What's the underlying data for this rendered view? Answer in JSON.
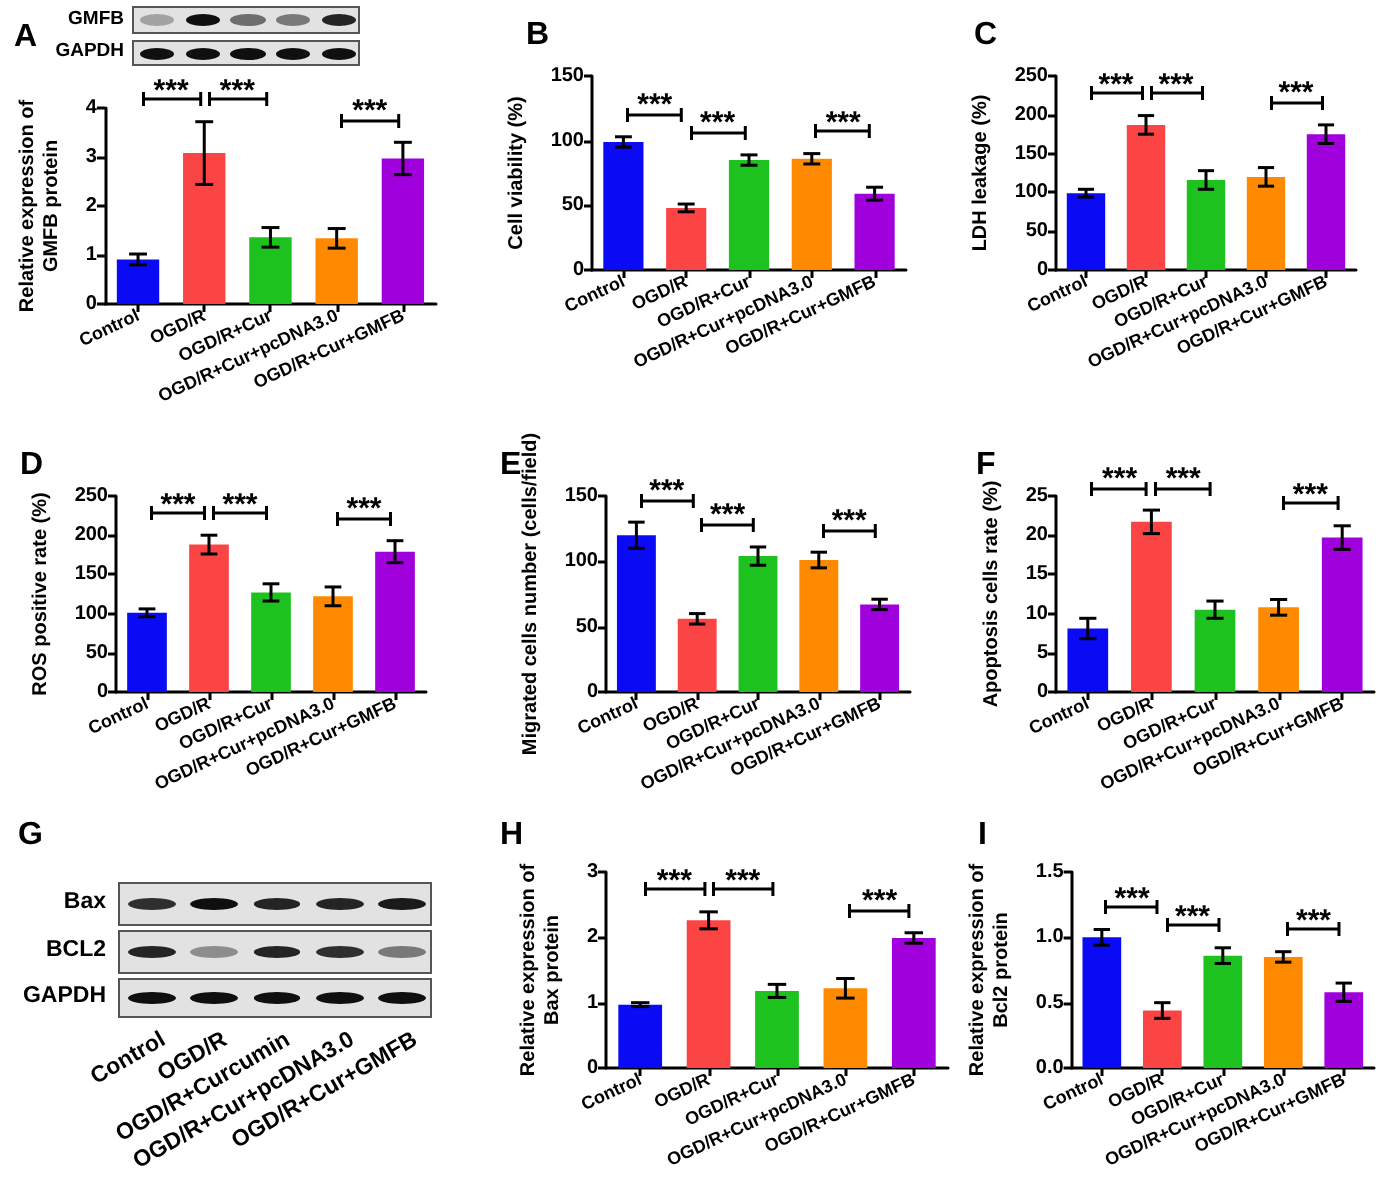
{
  "chart_data": [
    {
      "type": "bar",
      "title": "A",
      "categories": [
        "Control",
        "OGD/R",
        "OGD/R+Cur",
        "OGD/R+Cur+pcDNA3.0",
        "OGD/R+Cur+GMFB"
      ],
      "values": [
        0.91,
        3.08,
        1.36,
        1.34,
        2.97
      ],
      "errors": [
        0.11,
        0.64,
        0.2,
        0.2,
        0.33
      ],
      "colors": [
        "#0a0af5",
        "#fb4444",
        "#1ec21e",
        "#ff8a00",
        "#a000dc"
      ],
      "ylabel": "Relative expression of GMFB protein",
      "ylim": [
        0,
        4
      ],
      "yticks": [
        0,
        1,
        2,
        3,
        4
      ],
      "annotations": [
        "***",
        "***",
        "***",
        "GMFB",
        "GAPDH"
      ]
    },
    {
      "type": "bar",
      "title": "B",
      "categories": [
        "Control",
        "OGD/R",
        "OGD/R+Cur",
        "OGD/R+Cur+pcDNA3.0",
        "OGD/R+Cur+GMFB"
      ],
      "values": [
        99,
        48,
        85,
        86,
        59
      ],
      "errors": [
        4,
        3,
        4,
        4,
        5
      ],
      "colors": [
        "#0a0af5",
        "#fb4444",
        "#1ec21e",
        "#ff8a00",
        "#a000dc"
      ],
      "ylabel": "Cell viability (%)",
      "ylim": [
        0,
        150
      ],
      "yticks": [
        0,
        50,
        100,
        150
      ],
      "annotations": [
        "***",
        "***",
        "***"
      ]
    },
    {
      "type": "bar",
      "title": "C",
      "categories": [
        "Control",
        "OGD/R",
        "OGD/R+Cur",
        "OGD/R+Cur+pcDNA3.0",
        "OGD/R+Cur+GMFB"
      ],
      "values": [
        99,
        187,
        116,
        120,
        175
      ],
      "errors": [
        5,
        12,
        12,
        12,
        12
      ],
      "colors": [
        "#0a0af5",
        "#fb4444",
        "#1ec21e",
        "#ff8a00",
        "#a000dc"
      ],
      "ylabel": "LDH leakage (%)",
      "ylim": [
        0,
        250
      ],
      "yticks": [
        0,
        50,
        100,
        150,
        200,
        250
      ],
      "annotations": [
        "***",
        "***",
        "***"
      ]
    },
    {
      "type": "bar",
      "title": "D",
      "categories": [
        "Control",
        "OGD/R",
        "OGD/R+Cur",
        "OGD/R+Cur+pcDNA3.0",
        "OGD/R+Cur+GMFB"
      ],
      "values": [
        101,
        188,
        127,
        122,
        179
      ],
      "errors": [
        5,
        12,
        11,
        12,
        14
      ],
      "colors": [
        "#0a0af5",
        "#fb4444",
        "#1ec21e",
        "#ff8a00",
        "#a000dc"
      ],
      "ylabel": "ROS positive rate (%)",
      "ylim": [
        0,
        250
      ],
      "yticks": [
        0,
        50,
        100,
        150,
        200,
        250
      ],
      "annotations": [
        "***",
        "***",
        "***"
      ]
    },
    {
      "type": "bar",
      "title": "E",
      "categories": [
        "Control",
        "OGD/R",
        "OGD/R+Cur",
        "OGD/R+Cur+pcDNA3.0",
        "OGD/R+Cur+GMFB"
      ],
      "values": [
        120,
        56,
        104,
        101,
        67
      ],
      "errors": [
        10,
        4,
        7,
        6,
        4
      ],
      "colors": [
        "#0a0af5",
        "#fb4444",
        "#1ec21e",
        "#ff8a00",
        "#a000dc"
      ],
      "ylabel": "Migrated cells number (cells/field)",
      "ylim": [
        0,
        150
      ],
      "yticks": [
        0,
        50,
        100,
        150
      ],
      "annotations": [
        "***",
        "***",
        "***"
      ]
    },
    {
      "type": "bar",
      "title": "F",
      "categories": [
        "Control",
        "OGD/R",
        "OGD/R+Cur",
        "OGD/R+Cur+pcDNA3.0",
        "OGD/R+Cur+GMFB"
      ],
      "values": [
        8.1,
        21.7,
        10.5,
        10.8,
        19.7
      ],
      "errors": [
        1.3,
        1.5,
        1.1,
        1.0,
        1.5
      ],
      "colors": [
        "#0a0af5",
        "#fb4444",
        "#1ec21e",
        "#ff8a00",
        "#a000dc"
      ],
      "ylabel": "Apoptosis cells rate (%)",
      "ylim": [
        0,
        25
      ],
      "yticks": [
        0,
        5,
        10,
        15,
        20,
        25
      ],
      "annotations": [
        "***",
        "***",
        "***"
      ]
    },
    {
      "type": "other",
      "title": "G",
      "categories": [
        "Control",
        "OGD/R",
        "OGD/R+Curcumin",
        "OGD/R+Cur+pcDNA3.0",
        "OGD/R+Cur+GMFB"
      ],
      "annotations": [
        "Bax",
        "BCL2",
        "GAPDH"
      ]
    },
    {
      "type": "bar",
      "title": "H",
      "categories": [
        "Control",
        "OGD/R",
        "OGD/R+Cur",
        "OGD/R+Cur+pcDNA3.0",
        "OGD/R+Cur+GMFB"
      ],
      "values": [
        0.97,
        2.26,
        1.18,
        1.22,
        1.99
      ],
      "errors": [
        0.03,
        0.13,
        0.1,
        0.15,
        0.08
      ],
      "colors": [
        "#0a0af5",
        "#fb4444",
        "#1ec21e",
        "#ff8a00",
        "#a000dc"
      ],
      "ylabel": "Relative expression of Bax protein",
      "ylim": [
        0,
        3
      ],
      "yticks": [
        0,
        1,
        2,
        3
      ],
      "annotations": [
        "***",
        "***",
        "***"
      ]
    },
    {
      "type": "bar",
      "title": "I",
      "categories": [
        "Control",
        "OGD/R",
        "OGD/R+Cur",
        "OGD/R+Cur+pcDNA3.0",
        "OGD/R+Cur+GMFB"
      ],
      "values": [
        1.0,
        0.44,
        0.86,
        0.85,
        0.58
      ],
      "errors": [
        0.06,
        0.06,
        0.06,
        0.04,
        0.07
      ],
      "colors": [
        "#0a0af5",
        "#fb4444",
        "#1ec21e",
        "#ff8a00",
        "#a000dc"
      ],
      "ylabel": "Relative expression of Bcl2 protein",
      "ylim": [
        0,
        1.5
      ],
      "yticks": [
        {
          "value": 0,
          "label": "0.0"
        },
        {
          "value": 0.5,
          "label": "0.5"
        },
        {
          "value": 1,
          "label": "1.0"
        },
        {
          "value": 1.5,
          "label": "1.5"
        }
      ],
      "annotations": [
        "***",
        "***",
        "***"
      ]
    }
  ]
}
